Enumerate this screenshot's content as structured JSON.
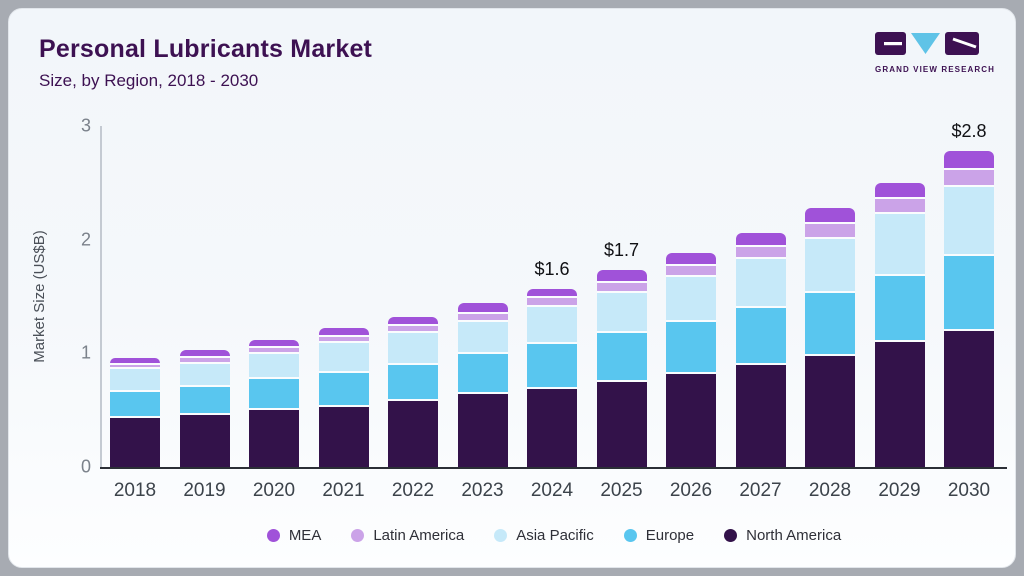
{
  "header": {
    "title": "Personal Lubricants Market",
    "subtitle": "Size, by Region, 2018 - 2030",
    "logo_text": "GRAND VIEW RESEARCH"
  },
  "chart_data": {
    "type": "bar",
    "stacked": true,
    "title": "Personal Lubricants Market",
    "subtitle": "Size, by Region, 2018 - 2030",
    "xlabel": "",
    "ylabel": "Market Size (US$B)",
    "ylim": [
      0,
      3
    ],
    "yticks": [
      0,
      1,
      2,
      3
    ],
    "grid": false,
    "legend_position": "bottom",
    "categories": [
      "2018",
      "2019",
      "2020",
      "2021",
      "2022",
      "2023",
      "2024",
      "2025",
      "2026",
      "2027",
      "2028",
      "2029",
      "2030"
    ],
    "series": [
      {
        "name": "North America",
        "color": "#33124a",
        "values": [
          0.43,
          0.46,
          0.5,
          0.53,
          0.58,
          0.64,
          0.69,
          0.75,
          0.82,
          0.9,
          0.98,
          1.1,
          1.2
        ]
      },
      {
        "name": "Europe",
        "color": "#59c6ef",
        "values": [
          0.23,
          0.24,
          0.27,
          0.3,
          0.32,
          0.35,
          0.39,
          0.43,
          0.46,
          0.5,
          0.55,
          0.58,
          0.66
        ]
      },
      {
        "name": "Asia Pacific",
        "color": "#c6e9f9",
        "values": [
          0.2,
          0.21,
          0.22,
          0.26,
          0.28,
          0.29,
          0.33,
          0.35,
          0.39,
          0.43,
          0.48,
          0.55,
          0.6
        ]
      },
      {
        "name": "Latin America",
        "color": "#cba3e8",
        "values": [
          0.04,
          0.05,
          0.06,
          0.05,
          0.06,
          0.07,
          0.08,
          0.09,
          0.1,
          0.11,
          0.13,
          0.13,
          0.15
        ]
      },
      {
        "name": "MEA",
        "color": "#a052d9",
        "values": [
          0.06,
          0.07,
          0.07,
          0.08,
          0.08,
          0.09,
          0.08,
          0.11,
          0.11,
          0.12,
          0.14,
          0.14,
          0.17
        ]
      }
    ],
    "totals": [
      0.96,
      1.03,
      1.12,
      1.22,
      1.32,
      1.44,
      1.57,
      1.73,
      1.88,
      2.06,
      2.28,
      2.5,
      2.78
    ],
    "value_labels": {
      "2024": "$1.6",
      "2025": "$1.7",
      "2030": "$2.8"
    },
    "legend": [
      "MEA",
      "Latin America",
      "Asia Pacific",
      "Europe",
      "North America"
    ]
  },
  "colors": {
    "title_text": "#3d1152",
    "card_background": "#f3f7fa",
    "axis_line": "#2b2f36",
    "logo_purple": "#3d1152",
    "logo_triangle": "#5fc3e7"
  }
}
